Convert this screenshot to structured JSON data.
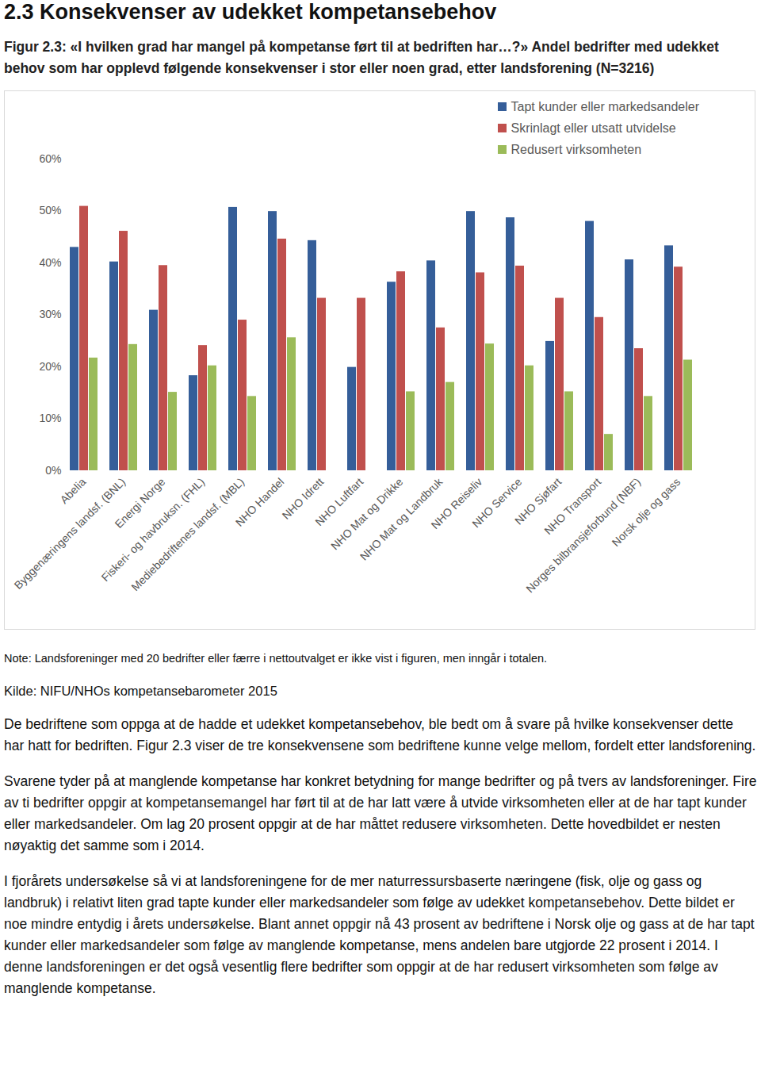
{
  "heading": "2.3 Konsekvenser av udekket kompetansebehov",
  "figure_caption": "Figur 2.3: «I hvilken grad har mangel på kompetanse ført til at bedriften har…?» Andel bedrifter med udekket behov som har opplevd følgende konsekvenser i stor eller noen grad, etter landsforening (N=3216)",
  "chart_data": {
    "type": "bar",
    "categories": [
      "Abelia",
      "Byggenæringens landsf. (BNL)",
      "Energi Norge",
      "Fiskeri- og havbruksn. (FHL)",
      "Mediebedriftenes landsf. (MBL)",
      "NHO Handel",
      "NHO Idrett",
      "NHO Luftfart",
      "NHO Mat og Drikke",
      "NHO Mat og Landbruk",
      "NHO Reiseliv",
      "NHO Service",
      "NHO Sjøfart",
      "NHO Transport",
      "Norges bilbransjeforbund (NBF)",
      "Norsk olje og gass"
    ],
    "series": [
      {
        "name": "Tapt kunder eller markedsandeler",
        "color": "#355e99",
        "values": [
          43.0,
          40.2,
          30.9,
          18.3,
          50.7,
          49.9,
          44.3,
          19.9,
          36.3,
          40.4,
          49.9,
          48.7,
          24.9,
          48.0,
          40.6,
          43.3
        ]
      },
      {
        "name": "Skrinlagt eller utsatt utvidelse",
        "color": "#c0504d",
        "values": [
          50.9,
          46.1,
          39.5,
          24.1,
          29.0,
          44.6,
          33.2,
          33.2,
          38.3,
          27.5,
          38.1,
          39.4,
          33.2,
          29.5,
          23.5,
          39.2
        ]
      },
      {
        "name": "Redusert virksomheten",
        "color": "#9bbb59",
        "values": [
          21.7,
          24.3,
          15.1,
          20.2,
          14.3,
          25.6,
          null,
          null,
          15.2,
          17.0,
          24.4,
          20.2,
          15.2,
          7.0,
          14.3,
          21.3
        ]
      }
    ],
    "ylim": [
      0,
      60
    ],
    "yticks": [
      {
        "value": 0,
        "label": "0%"
      },
      {
        "value": 10,
        "label": "10%"
      },
      {
        "value": 20,
        "label": "20%"
      },
      {
        "value": 30,
        "label": "30%"
      },
      {
        "value": 40,
        "label": "40%"
      },
      {
        "value": 50,
        "label": "50%"
      },
      {
        "value": 60,
        "label": "60%"
      }
    ],
    "grid": false,
    "legend": "top-right"
  },
  "note": "Note: Landsforeninger med 20 bedrifter eller færre i nettoutvalget er ikke vist i figuren, men inngår i totalen.",
  "source": "Kilde: NIFU/NHOs kompetansebarometer 2015",
  "paragraphs": [
    "De bedriftene som oppga at de hadde et udekket kompetansebehov, ble bedt om å svare på hvilke konsekvenser dette har hatt for bedriften. Figur 2.3 viser de tre konsekvensene som bedriftene kunne velge mellom, fordelt etter landsforening.",
    "Svarene tyder på at manglende kompetanse har konkret betydning for mange bedrifter og på tvers av landsforeninger. Fire av ti bedrifter oppgir at kompetansemangel har ført til at de har latt være å utvide virksomheten eller at de har tapt kunder eller markedsandeler. Om lag 20 prosent oppgir at de har måttet redusere virksomheten. Dette hovedbildet er nesten nøyaktig det samme som i 2014.",
    "I fjorårets undersøkelse så vi at landsforeningene for de mer naturressursbaserte næringene (fisk, olje og gass og landbruk) i relativt liten grad tapte kunder eller markedsandeler som følge av udekket kompetansebehov. Dette bildet er noe mindre entydig i årets undersøkelse. Blant annet oppgir nå 43 prosent av bedriftene i Norsk olje og gass at de har tapt kunder eller markedsandeler som følge av manglende kompetanse, mens andelen bare utgjorde 22 prosent i 2014. I denne landsforeningen er det også vesentlig flere bedrifter som oppgir at de har redusert virksomheten som følge av manglende kompetanse."
  ]
}
